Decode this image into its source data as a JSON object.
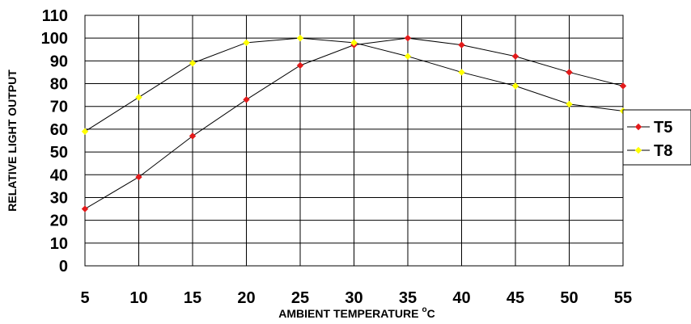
{
  "chart_data": {
    "type": "line",
    "title": "",
    "xlabel": "AMBIENT TEMPERATURE",
    "xlabel_unit": "C",
    "xlabel_degree": "o",
    "ylabel": "RELATIVE LIGHT OUTPUT",
    "x": [
      5,
      10,
      15,
      20,
      25,
      30,
      35,
      40,
      45,
      50,
      55
    ],
    "x_ticks": [
      "5",
      "10",
      "15",
      "20",
      "25",
      "30",
      "35",
      "40",
      "45",
      "50",
      "55"
    ],
    "y_ticks": [
      "0",
      "10",
      "20",
      "30",
      "40",
      "50",
      "60",
      "70",
      "80",
      "90",
      "100",
      "110"
    ],
    "ylim": [
      0,
      110
    ],
    "grid": true,
    "legend_position": "right",
    "series": [
      {
        "name": "T5",
        "color": "#e31b1b",
        "line_color": "#000000",
        "values": [
          25,
          39,
          57,
          73,
          88,
          97,
          100,
          97,
          92,
          85,
          79
        ]
      },
      {
        "name": "T8",
        "color": "#ffff00",
        "line_color": "#000000",
        "values": [
          59,
          74,
          89,
          98,
          100,
          98,
          92,
          85,
          79,
          71,
          68
        ]
      }
    ]
  }
}
